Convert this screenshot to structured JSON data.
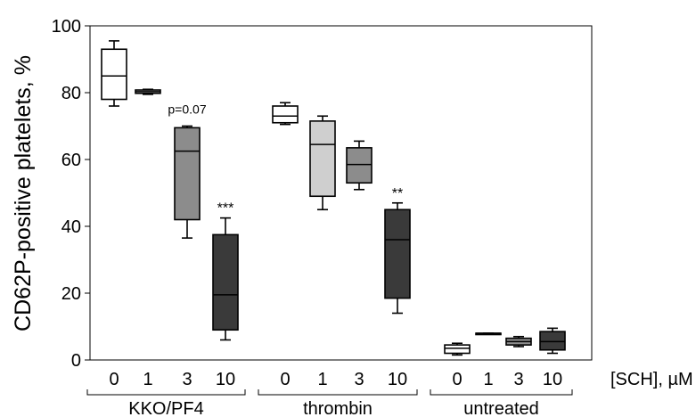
{
  "chart_data": {
    "type": "box",
    "ylabel": "CD62P-positive platelets, %",
    "xlabel": "[SCH], µM",
    "ylim": [
      0,
      100
    ],
    "yticks": [
      "0",
      "20",
      "40",
      "60",
      "80",
      "100"
    ],
    "grid": false,
    "groups": [
      {
        "label": "KKO/PF4",
        "boxes": [
          {
            "dose": "0",
            "fill": "#ffffff",
            "whisker_low": 76,
            "q1": 78,
            "median": 85,
            "q3": 93,
            "whisker_high": 95.5,
            "annotation": ""
          },
          {
            "dose": "1",
            "fill": "#cfcfcf",
            "whisker_low": 79.5,
            "q1": 79.8,
            "median": 80.3,
            "q3": 80.8,
            "whisker_high": 81,
            "annotation": ""
          },
          {
            "dose": "3",
            "fill": "#8c8c8c",
            "whisker_low": 36.5,
            "q1": 42,
            "median": 62.5,
            "q3": 69.5,
            "whisker_high": 70,
            "annotation": "p=0.07"
          },
          {
            "dose": "10",
            "fill": "#3a3a3a",
            "whisker_low": 6,
            "q1": 9,
            "median": 19.5,
            "q3": 37.5,
            "whisker_high": 42.5,
            "annotation": "***"
          }
        ]
      },
      {
        "label": "thrombin",
        "boxes": [
          {
            "dose": "0",
            "fill": "#ffffff",
            "whisker_low": 70.5,
            "q1": 71,
            "median": 73,
            "q3": 76,
            "whisker_high": 77,
            "annotation": ""
          },
          {
            "dose": "1",
            "fill": "#cfcfcf",
            "whisker_low": 45,
            "q1": 49,
            "median": 64.5,
            "q3": 71.5,
            "whisker_high": 73,
            "annotation": ""
          },
          {
            "dose": "3",
            "fill": "#8c8c8c",
            "whisker_low": 51,
            "q1": 53,
            "median": 58.5,
            "q3": 63.5,
            "whisker_high": 65.5,
            "annotation": ""
          },
          {
            "dose": "10",
            "fill": "#3a3a3a",
            "whisker_low": 14,
            "q1": 18.5,
            "median": 36,
            "q3": 45,
            "whisker_high": 47,
            "annotation": "**"
          }
        ]
      },
      {
        "label": "untreated",
        "boxes": [
          {
            "dose": "0",
            "fill": "#ffffff",
            "whisker_low": 1.5,
            "q1": 2,
            "median": 3.5,
            "q3": 4.5,
            "whisker_high": 5,
            "annotation": ""
          },
          {
            "dose": "1",
            "fill": "#cfcfcf",
            "whisker_low": 8,
            "q1": 8,
            "median": 8,
            "q3": 8,
            "whisker_high": 8,
            "annotation": ""
          },
          {
            "dose": "3",
            "fill": "#8c8c8c",
            "whisker_low": 4,
            "q1": 4.5,
            "median": 5.5,
            "q3": 6.5,
            "whisker_high": 7,
            "annotation": ""
          },
          {
            "dose": "10",
            "fill": "#3a3a3a",
            "whisker_low": 2,
            "q1": 3,
            "median": 5.5,
            "q3": 8.5,
            "whisker_high": 9.5,
            "annotation": ""
          }
        ]
      }
    ]
  }
}
